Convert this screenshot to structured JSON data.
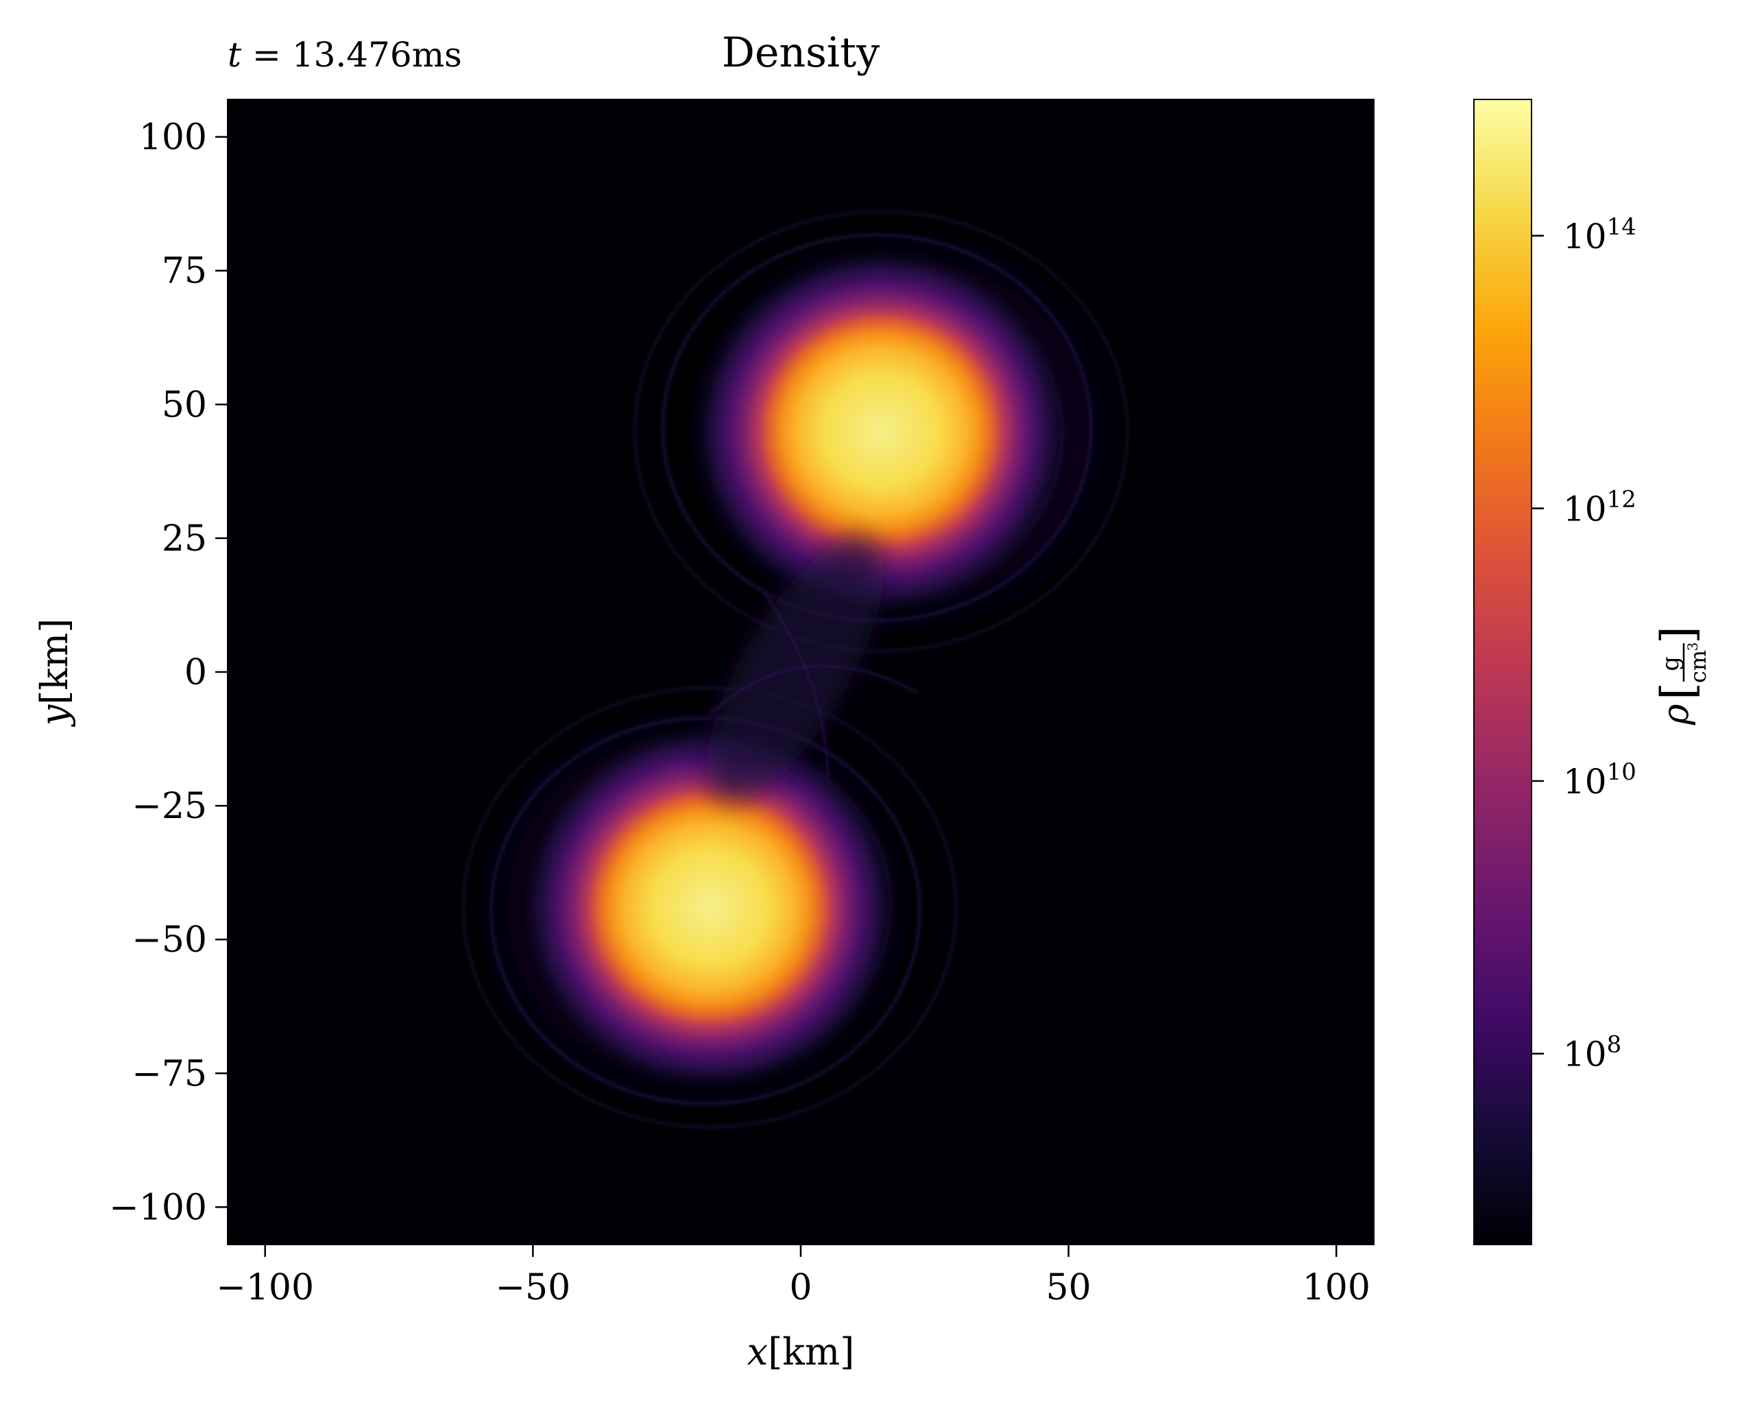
{
  "chart_data": {
    "type": "heatmap",
    "title": "Density",
    "time_label": {
      "var": "t",
      "value": "13.476ms"
    },
    "xlabel": {
      "var": "x",
      "unit": "[km]"
    },
    "ylabel": {
      "var": "y",
      "unit": "[km]"
    },
    "xlim": [
      -107,
      107
    ],
    "ylim": [
      -107,
      107
    ],
    "xticks": [
      -100,
      -50,
      0,
      50,
      100
    ],
    "xtick_labels": [
      "−100",
      "−50",
      "0",
      "50",
      "100"
    ],
    "yticks": [
      100,
      75,
      50,
      25,
      0,
      -25,
      -50,
      -75,
      -100
    ],
    "ytick_labels": [
      "100",
      "75",
      "50",
      "25",
      "0",
      "−25",
      "−50",
      "−75",
      "−100"
    ],
    "colorbar": {
      "scale": "log",
      "colormap": "inferno",
      "log_range": [
        6.6,
        15.0
      ],
      "ticks_exp": [
        14,
        12,
        10,
        8
      ],
      "tick_base": "10",
      "label": {
        "var": "ρ",
        "num": "g",
        "den": "cm",
        "den_exp": "3"
      }
    },
    "features": [
      {
        "name": "upper star core",
        "x": 15,
        "y": 45,
        "peak_log_density": 14.8
      },
      {
        "name": "lower star core",
        "x": -17,
        "y": -44,
        "peak_log_density": 14.8
      }
    ],
    "colors": {
      "background": "#000004",
      "core": "#fcffa4",
      "axes": "#000000"
    }
  }
}
